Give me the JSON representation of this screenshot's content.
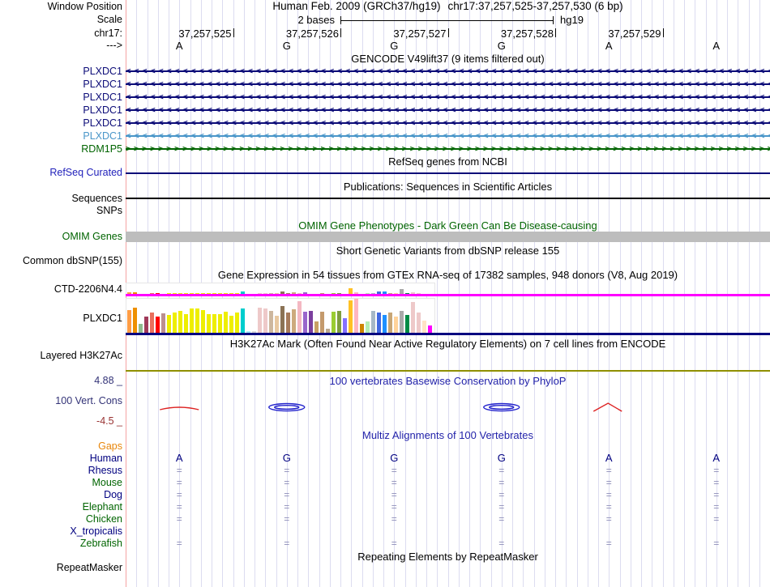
{
  "header": {
    "row_labels": {
      "window_position": "Window Position",
      "scale": "Scale",
      "chrom": "chr17:",
      "strand": "--->"
    },
    "assembly": "Human Feb. 2009 (GRCh37/hg19)",
    "position": "chr17:37,257,525-37,257,530 (6 bp)",
    "scale_value": "2 bases",
    "genome": "hg19",
    "coordinates": [
      "37,257,525",
      "37,257,526",
      "37,257,527",
      "37,257,528",
      "37,257,529"
    ],
    "sequence": [
      "A",
      "G",
      "G",
      "G",
      "A",
      "A"
    ]
  },
  "gencode": {
    "title": "GENCODE V49lift37 (9 items filtered out)",
    "genes": [
      {
        "name": "PLXDC1",
        "color": "#0C0C78",
        "strand": "-"
      },
      {
        "name": "PLXDC1",
        "color": "#0C0C78",
        "strand": "-"
      },
      {
        "name": "PLXDC1",
        "color": "#0C0C78",
        "strand": "-"
      },
      {
        "name": "PLXDC1",
        "color": "#0C0C78",
        "strand": "-"
      },
      {
        "name": "PLXDC1",
        "color": "#0C0C78",
        "strand": "-"
      },
      {
        "name": "PLXDC1",
        "color": "#4A96C9",
        "strand": "-"
      },
      {
        "name": "RDM1P5",
        "color": "#006400",
        "strand": "+"
      }
    ]
  },
  "refseq": {
    "title": "RefSeq genes from NCBI",
    "label": "RefSeq Curated",
    "label_color": "#2222BB",
    "line_color": "#0C0C78"
  },
  "publications": {
    "title": "Publications: Sequences in Scientific Articles",
    "label": "Sequences",
    "line_color": "#000000"
  },
  "snps": {
    "label": "SNPs"
  },
  "omim": {
    "title": "OMIM Gene Phenotypes - Dark Green Can Be Disease-causing",
    "label": "OMIM Genes",
    "color": "#006400",
    "bar_color": "#BDBDBD"
  },
  "dbsnp": {
    "title": "Short Genetic Variants from dbSNP release 155",
    "label": "Common dbSNP(155)"
  },
  "gtex": {
    "title": "Gene Expression in 54 tissues from GTEx RNA-seq of 17382 samples, 948 donors (V8, Aug 2019)",
    "rows": [
      {
        "label": "CTD-2206N4.4",
        "baseline_color": "#FF00FF"
      },
      {
        "label": "PLXDC1",
        "baseline_color": "#000080"
      }
    ]
  },
  "h3k27ac": {
    "title": "H3K27Ac Mark (Often Found Near Active Regulatory Elements) on 7 cell lines from ENCODE",
    "label": "Layered H3K27Ac",
    "line_color": "#8F8F00"
  },
  "conservation": {
    "title": "100 vertebrates Basewise Conservation by PhyloP",
    "title_color": "#2222AA",
    "label": "100 Vert. Cons",
    "label_color": "#333377",
    "max_label": "4.88 _",
    "min_label": "-4.5 _",
    "min_label_color": "#993333",
    "marks": [
      {
        "base_index": 0,
        "shape": "arc",
        "color": "#DD2222"
      },
      {
        "base_index": 1,
        "shape": "ellipse",
        "color": "#2222CC"
      },
      {
        "base_index": 3,
        "shape": "ellipse",
        "color": "#2222CC"
      },
      {
        "base_index": 4,
        "shape": "peak",
        "color": "#DD2222"
      }
    ]
  },
  "multiz": {
    "title": "Multiz Alignments of 100 Vertebrates",
    "title_color": "#2222AA",
    "identity_symbol": "=",
    "identity_color": "#8E8EB8",
    "species": [
      {
        "name": "Gaps",
        "color": "#E8860A",
        "content": "none"
      },
      {
        "name": "Human",
        "color": "#000080",
        "content": "bases"
      },
      {
        "name": "Rhesus",
        "color": "#000080",
        "content": "identity"
      },
      {
        "name": "Mouse",
        "color": "#006400",
        "content": "identity"
      },
      {
        "name": "Dog",
        "color": "#000080",
        "content": "identity"
      },
      {
        "name": "Elephant",
        "color": "#006400",
        "content": "identity"
      },
      {
        "name": "Chicken",
        "color": "#006400",
        "content": "identity"
      },
      {
        "name": "X_tropicalis",
        "color": "#000080",
        "content": "none"
      },
      {
        "name": "Zebrafish",
        "color": "#006400",
        "content": "identity"
      }
    ]
  },
  "repeatmasker": {
    "title": "Repeating Elements by RepeatMasker",
    "label": "RepeatMasker"
  },
  "chart_data": [
    {
      "type": "bar",
      "name": "GTEx expression CTD-2206N4.4 (54 tissues, bar heights in px)",
      "values": [
        3,
        3,
        1,
        1,
        2,
        2,
        1,
        2,
        2,
        2,
        2,
        2,
        2,
        2,
        2,
        2,
        2,
        2,
        2,
        2,
        4,
        1,
        0,
        2,
        2,
        2,
        2,
        4,
        2,
        3,
        2,
        3,
        1,
        1,
        2,
        1,
        2,
        2,
        1,
        8,
        3,
        1,
        2,
        2,
        4,
        4,
        2,
        2,
        7,
        2,
        3,
        2,
        1,
        0
      ],
      "colors": [
        "#FF9D45",
        "#EE9000",
        "#8FBC8F",
        "#A03A5A",
        "#E9705E",
        "#FF0000",
        "#BC8F8F",
        "#EEEE00",
        "#EEEE00",
        "#EEEE00",
        "#EEEE00",
        "#EEEE00",
        "#EEEE00",
        "#EEEE00",
        "#EEEE00",
        "#EEEE00",
        "#EEEE00",
        "#EEEE00",
        "#EEEE00",
        "#EEEE00",
        "#00CDCD",
        "#AAEEFF",
        "#D9D9D9",
        "#EEC9C9",
        "#EEC9C9",
        "#CDB79E",
        "#E8C8A0",
        "#8B7355",
        "#A67B5B",
        "#CDAA7D",
        "#F4B8C2",
        "#9966CC",
        "#7B3F9E",
        "#C8A064",
        "#C49A6C",
        "#BBA88E",
        "#9ACD32",
        "#7E9E3E",
        "#8470FF",
        "#FFC125",
        "#FFB6C1",
        "#CD8500",
        "#B4EEB4",
        "#A6B8C7",
        "#4169E1",
        "#1E90FF",
        "#C8A675",
        "#FFD39B",
        "#A9A9A9",
        "#008B45",
        "#EEC9C9",
        "#EEC9C9",
        "#FFE4C4",
        "#FF00FF"
      ]
    },
    {
      "type": "bar",
      "name": "GTEx expression PLXDC1 (54 tissues, bar heights in px)",
      "values": [
        28,
        31,
        11,
        20,
        25,
        20,
        24,
        22,
        25,
        27,
        23,
        30,
        30,
        28,
        23,
        23,
        23,
        26,
        21,
        25,
        30,
        2,
        2,
        31,
        30,
        27,
        21,
        33,
        25,
        29,
        39,
        26,
        27,
        14,
        26,
        5,
        26,
        27,
        18,
        40,
        42,
        11,
        14,
        27,
        25,
        22,
        25,
        20,
        27,
        22,
        38,
        25,
        15,
        9
      ],
      "colors": [
        "#FF9D45",
        "#EE9000",
        "#8FBC8F",
        "#A03A5A",
        "#E9705E",
        "#FF0000",
        "#BC8F8F",
        "#EEEE00",
        "#EEEE00",
        "#EEEE00",
        "#EEEE00",
        "#EEEE00",
        "#EEEE00",
        "#EEEE00",
        "#EEEE00",
        "#EEEE00",
        "#EEEE00",
        "#EEEE00",
        "#EEEE00",
        "#EEEE00",
        "#00CDCD",
        "#AAEEFF",
        "#D9D9D9",
        "#EEC9C9",
        "#EEC9C9",
        "#CDB79E",
        "#E8C8A0",
        "#8B7355",
        "#A67B5B",
        "#CDAA7D",
        "#F4B8C2",
        "#9966CC",
        "#7B3F9E",
        "#C8A064",
        "#C49A6C",
        "#BBA88E",
        "#9ACD32",
        "#7E9E3E",
        "#8470FF",
        "#FFC125",
        "#FFB6C1",
        "#CD8500",
        "#B4EEB4",
        "#A6B8C7",
        "#4169E1",
        "#1E90FF",
        "#C8A675",
        "#FFD39B",
        "#A9A9A9",
        "#008B45",
        "#EEC9C9",
        "#EEC9C9",
        "#FFE4C4",
        "#FF00FF"
      ]
    }
  ]
}
